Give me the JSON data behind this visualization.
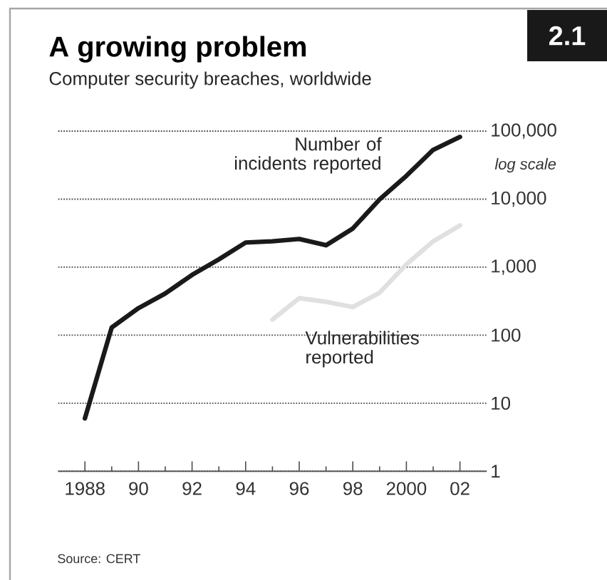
{
  "chart_data": {
    "type": "line",
    "title": "A growing problem",
    "subtitle": "Computer security breaches, worldwide",
    "x": [
      1988,
      1989,
      1990,
      1991,
      1992,
      1993,
      1994,
      1995,
      1996,
      1997,
      1998,
      1999,
      2000,
      2001,
      2002
    ],
    "series": [
      {
        "name": "Number of incidents reported",
        "color": "#1a1a1a",
        "values": [
          6,
          130,
          250,
          410,
          770,
          1300,
          2300,
          2400,
          2600,
          2100,
          3700,
          9900,
          22000,
          53000,
          82000
        ]
      },
      {
        "name": "Vulnerabilities reported",
        "color": "#e0e0e0",
        "x": [
          1995,
          1996,
          1997,
          1998,
          1999,
          2000,
          2001,
          2002
        ],
        "values": [
          170,
          350,
          310,
          260,
          420,
          1100,
          2400,
          4100
        ]
      }
    ],
    "log": "y",
    "xlim": [
      1987,
      2003
    ],
    "ylim": [
      1,
      100000
    ],
    "xticks": [
      {
        "value": 1988,
        "label": "1988"
      },
      {
        "value": 1989,
        "label": null
      },
      {
        "value": 1990,
        "label": "90"
      },
      {
        "value": 1991,
        "label": null
      },
      {
        "value": 1992,
        "label": "92"
      },
      {
        "value": 1993,
        "label": null
      },
      {
        "value": 1994,
        "label": "94"
      },
      {
        "value": 1995,
        "label": null
      },
      {
        "value": 1996,
        "label": "96"
      },
      {
        "value": 1997,
        "label": null
      },
      {
        "value": 1998,
        "label": "98"
      },
      {
        "value": 1999,
        "label": null
      },
      {
        "value": 2000,
        "label": "2000"
      },
      {
        "value": 2001,
        "label": null
      },
      {
        "value": 2002,
        "label": "02"
      }
    ],
    "yticks": [
      {
        "value": 1,
        "label": "1"
      },
      {
        "value": 10,
        "label": "10"
      },
      {
        "value": 100,
        "label": "100"
      },
      {
        "value": 1000,
        "label": "1,000"
      },
      {
        "value": 10000,
        "label": "10,000"
      },
      {
        "value": 100000,
        "label": "100,000"
      }
    ],
    "grid": "y",
    "legend": false,
    "annotations": [
      "2.1",
      "log scale",
      "Source: CERT"
    ]
  }
}
